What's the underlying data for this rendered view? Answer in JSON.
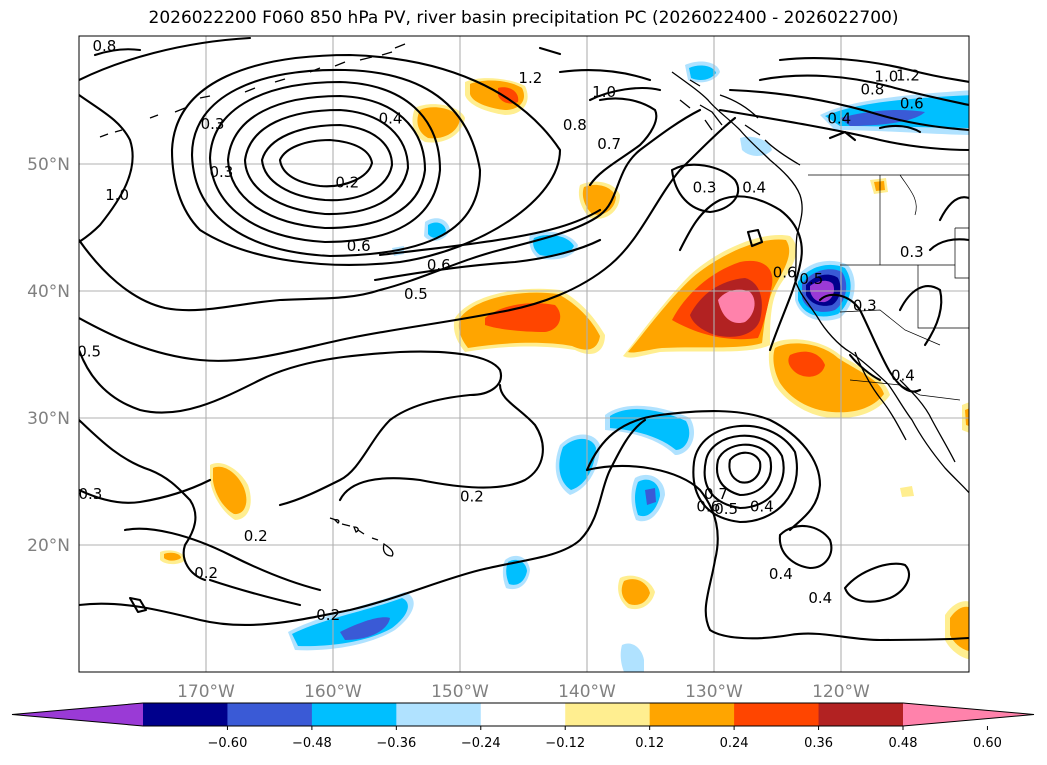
{
  "title": "2026022200 F060 850 hPa PV, river basin precipitation PC (2026022400 - 2026022700)",
  "map_extent": {
    "lon_min": -180,
    "lon_max": -110,
    "lat_min": 10,
    "lat_max": 60
  },
  "gridlines": true,
  "lon_ticks": [
    {
      "lon": -170,
      "label": "170°W"
    },
    {
      "lon": -160,
      "label": "160°W"
    },
    {
      "lon": -150,
      "label": "150°W"
    },
    {
      "lon": -140,
      "label": "140°W"
    },
    {
      "lon": -130,
      "label": "130°W"
    },
    {
      "lon": -120,
      "label": "120°W"
    }
  ],
  "lat_ticks": [
    {
      "lat": 20,
      "label": "20°N"
    },
    {
      "lat": 30,
      "label": "30°N"
    },
    {
      "lat": 40,
      "label": "40°N"
    },
    {
      "lat": 50,
      "label": "50°N"
    }
  ],
  "colorbar": {
    "extend": "both",
    "colors": [
      "#9a3ad6",
      "#00008c",
      "#3a5ad6",
      "#00bfff",
      "#b0e2ff",
      "#ffffff",
      "#ffee90",
      "#ffa500",
      "#ff4500",
      "#b22222",
      "#ff82ab"
    ],
    "tick_labels": [
      "−0.60",
      "−0.48",
      "−0.36",
      "−0.24",
      "−0.12",
      "0.12",
      "0.24",
      "0.36",
      "0.48",
      "0.60"
    ]
  },
  "contour_labels": [
    {
      "text": "0.8",
      "lon": -178,
      "lat": 59.2
    },
    {
      "text": "1.2",
      "lon": -144.5,
      "lat": 56.7
    },
    {
      "text": "1.0",
      "lon": -138.7,
      "lat": 55.6
    },
    {
      "text": "1.0",
      "lon": -116.5,
      "lat": 56.8
    },
    {
      "text": "1.2",
      "lon": -114.8,
      "lat": 56.9
    },
    {
      "text": "0.8",
      "lon": -117.6,
      "lat": 55.8
    },
    {
      "text": "0.6",
      "lon": -114.5,
      "lat": 54.7
    },
    {
      "text": "0.4",
      "lon": -120.2,
      "lat": 53.5
    },
    {
      "text": "0.3",
      "lon": -169.5,
      "lat": 53.1
    },
    {
      "text": "0.4",
      "lon": -155.5,
      "lat": 53.5
    },
    {
      "text": "0.3",
      "lon": -168.8,
      "lat": 49.3
    },
    {
      "text": "0.2",
      "lon": -158.9,
      "lat": 48.5
    },
    {
      "text": "0.8",
      "lon": -141,
      "lat": 53.0
    },
    {
      "text": "0.7",
      "lon": -138.3,
      "lat": 51.5
    },
    {
      "text": "1.0",
      "lon": -177,
      "lat": 47.5
    },
    {
      "text": "0.6",
      "lon": -158,
      "lat": 43.5
    },
    {
      "text": "0.6",
      "lon": -151.7,
      "lat": 42.0
    },
    {
      "text": "0.3",
      "lon": -130.8,
      "lat": 48.1
    },
    {
      "text": "0.4",
      "lon": -126.9,
      "lat": 48.1
    },
    {
      "text": "0.5",
      "lon": -153.5,
      "lat": 39.7
    },
    {
      "text": "0.6",
      "lon": -124.5,
      "lat": 41.4
    },
    {
      "text": "0.5",
      "lon": -122.4,
      "lat": 40.9
    },
    {
      "text": "0.3",
      "lon": -114.5,
      "lat": 43.0
    },
    {
      "text": "0.3",
      "lon": -118.2,
      "lat": 38.8
    },
    {
      "text": "0.4",
      "lon": -115.2,
      "lat": 33.3
    },
    {
      "text": "0.5",
      "lon": -179.2,
      "lat": 35.2
    },
    {
      "text": "0.3",
      "lon": -179.1,
      "lat": 24.0
    },
    {
      "text": "0.2",
      "lon": -149.1,
      "lat": 23.8
    },
    {
      "text": "0.2",
      "lon": -166.1,
      "lat": 20.7
    },
    {
      "text": "0.2",
      "lon": -170,
      "lat": 17.8
    },
    {
      "text": "0.2",
      "lon": -160.4,
      "lat": 14.5
    },
    {
      "text": "0.7",
      "lon": -129.9,
      "lat": 24.0
    },
    {
      "text": "0.6",
      "lon": -130.5,
      "lat": 23.0
    },
    {
      "text": "0.5",
      "lon": -129.1,
      "lat": 22.8
    },
    {
      "text": "0.4",
      "lon": -126.3,
      "lat": 23.0
    },
    {
      "text": "0.4",
      "lon": -124.8,
      "lat": 17.7
    },
    {
      "text": "0.4",
      "lon": -121.7,
      "lat": 15.8
    }
  ]
}
